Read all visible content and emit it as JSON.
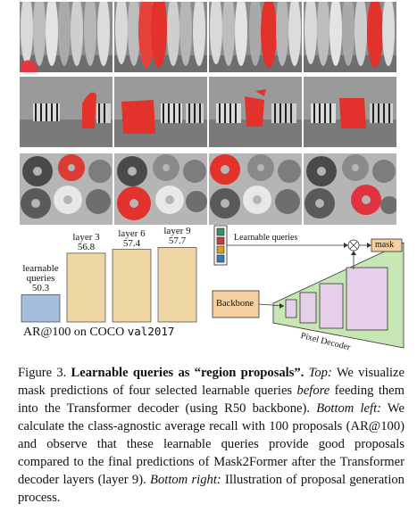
{
  "chart_data": {
    "type": "bar",
    "categories": [
      "learnable queries",
      "layer 3",
      "layer 6",
      "layer 9"
    ],
    "category_lines": [
      [
        "learnable",
        "queries"
      ],
      [
        "layer 3"
      ],
      [
        "layer 6"
      ],
      [
        "layer 9"
      ]
    ],
    "values": [
      50.3,
      56.8,
      57.4,
      57.7
    ],
    "value_labels": [
      "50.3",
      "56.8",
      "57.4",
      "57.7"
    ],
    "colors": [
      "#a6bedd",
      "#eed5a4",
      "#eed5a4",
      "#eed5a4"
    ],
    "ylim": [
      46,
      60
    ],
    "caption_prefix": "AR@100 on COCO ",
    "caption_mono": "val2017"
  },
  "diagram": {
    "learnable_queries_label": "Learnable queries",
    "query_colors": [
      "#3a8f6a",
      "#c2413a",
      "#d79f2e",
      "#3c78b8"
    ],
    "mask_label": "mask",
    "backbone_label": "Backbone",
    "pixel_decoder_label": "Pixel Decoder",
    "colors": {
      "backbone": "#f6cf9e",
      "pixel_decoder": "#c6e6b4",
      "feature_map": "#e6cfe8",
      "mask_box": "#f6cf9e"
    }
  },
  "images": {
    "rows": [
      "surfboards",
      "zebras",
      "donuts"
    ],
    "mask_color": "#e2322b"
  },
  "caption": {
    "fig_label": "Figure 3.",
    "title": "Learnable queries as “region proposals”.",
    "top_label": "Top:",
    "top_text_1": "We visualize mask predictions of four selected learnable queries",
    "top_before": "before",
    "top_text_2": "feeding them into the Transformer decoder (using R50 backbone).",
    "bottom_left_label": "Bottom left:",
    "bottom_left_text": "We calculate the class-agnostic average recall with 100 proposals (AR@100) and observe that these learnable queries provide good proposals compared to the final predictions of Mask2Former after the Transformer decoder layers (layer 9).",
    "bottom_right_label": "Bottom right:",
    "bottom_right_text": "Illustration of proposal generation process."
  }
}
